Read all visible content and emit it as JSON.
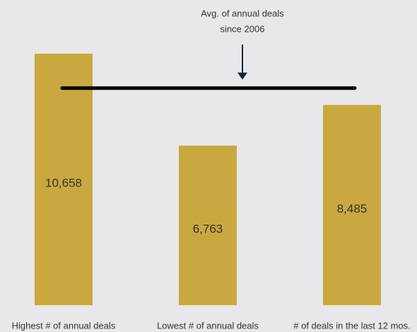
{
  "chart_data": {
    "type": "bar",
    "categories": [
      "Highest # of annual deals",
      "Lowest # of annual deals",
      "# of deals in the last 12 mos."
    ],
    "values": [
      10658,
      6763,
      8485
    ],
    "value_labels": [
      "10,658",
      "6,763",
      "8,485"
    ],
    "color": "#c9a93f",
    "average": 9200,
    "annotation": [
      "Avg. of annual deals",
      "since 2006"
    ]
  }
}
